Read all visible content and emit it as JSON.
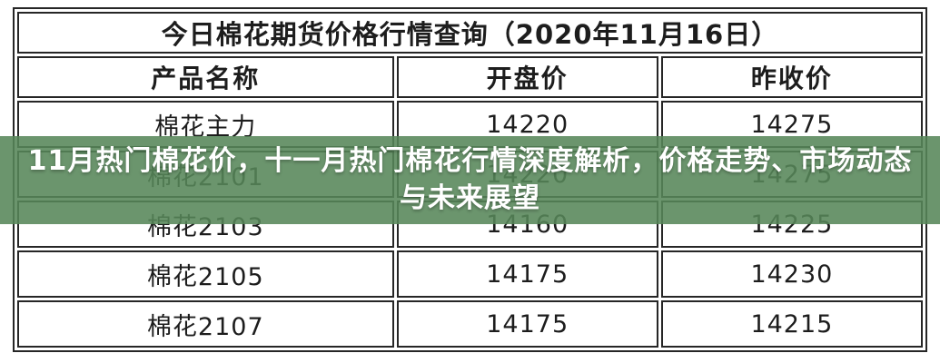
{
  "page": {
    "background": "#ffffff"
  },
  "table": {
    "title": "今日棉花期货价格行情查询（2020年11月16日）",
    "columns": [
      "产品名称",
      "开盘价",
      "昨收价"
    ],
    "rows": [
      {
        "name": "棉花主力",
        "open": "14220",
        "prev_close": "14275"
      },
      {
        "name": "棉花2101",
        "open": "14220",
        "prev_close": "14275"
      },
      {
        "name": "棉花2103",
        "open": "14160",
        "prev_close": "14225"
      },
      {
        "name": "棉花2105",
        "open": "14175",
        "prev_close": "14230"
      },
      {
        "name": "棉花2107",
        "open": "14175",
        "prev_close": "14215"
      }
    ]
  },
  "overlay": {
    "lines": [
      "11月热门棉花价，十一月热门棉花行情深度解析，价格走势、市场动态",
      "与未来展望"
    ],
    "full_text": "11月热门棉花价，十一月热门棉花行情深度解析，价格走势、市场动态与未来展望",
    "background": "rgba(86,134,89,0.88)",
    "text_color": "#ffffff"
  },
  "colors": {
    "table_border": "#262626",
    "table_text": "#1d1d1d",
    "overlay_green": "#6f9e72"
  },
  "chart_data": {
    "type": "table",
    "title": "今日棉花期货价格行情查询（2020年11月16日）",
    "columns": [
      "产品名称",
      "开盘价",
      "昨收价"
    ],
    "rows": [
      [
        "棉花主力",
        14220,
        14275
      ],
      [
        "棉花2101",
        14220,
        14275
      ],
      [
        "棉花2103",
        14160,
        14225
      ],
      [
        "棉花2105",
        14175,
        14230
      ],
      [
        "棉花2107",
        14175,
        14215
      ]
    ]
  }
}
